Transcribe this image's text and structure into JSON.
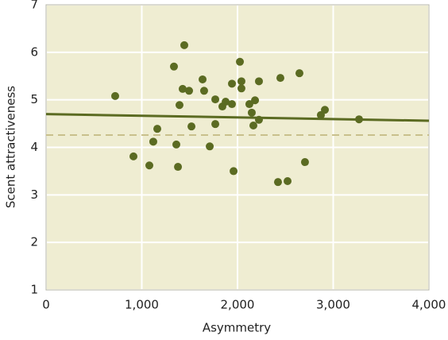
{
  "chart_data": {
    "type": "scatter",
    "x_label": "Asymmetry",
    "y_label": "Scent attractiveness",
    "xlim": [
      0,
      4000
    ],
    "ylim": [
      1,
      7
    ],
    "xticks": [
      0,
      {
        "value": 1000,
        "label": "1,000"
      },
      {
        "value": 2000,
        "label": "2,000"
      },
      {
        "value": 3000,
        "label": "3,000"
      },
      {
        "value": 4000,
        "label": "4,000"
      }
    ],
    "yticks": [
      1,
      2,
      3,
      4,
      5,
      6,
      7
    ],
    "grid": true,
    "background": "#efedd2",
    "color": "#5b6b22",
    "x": [
      722,
      913,
      1079,
      1120,
      1162,
      1336,
      1361,
      1378,
      1394,
      1427,
      1444,
      1494,
      1519,
      1635,
      1651,
      1710,
      1768,
      1768,
      1842,
      1876,
      1942,
      1942,
      1959,
      2025,
      2041,
      2041,
      2124,
      2149,
      2166,
      2183,
      2224,
      2224,
      2423,
      2448,
      2523,
      2647,
      2705,
      2871,
      2913,
      3270
    ],
    "y": [
      5.08,
      3.81,
      3.62,
      4.12,
      4.39,
      5.7,
      4.06,
      3.59,
      4.89,
      5.23,
      6.15,
      5.19,
      4.44,
      5.43,
      5.19,
      4.02,
      4.49,
      5.01,
      4.86,
      4.96,
      4.91,
      5.34,
      3.5,
      5.8,
      5.39,
      5.24,
      4.91,
      4.73,
      4.46,
      4.99,
      4.58,
      5.39,
      3.27,
      5.46,
      3.29,
      5.56,
      3.69,
      4.68,
      4.79,
      4.59
    ],
    "trend_line": {
      "x": [
        0,
        4000
      ],
      "y": [
        4.7,
        4.56
      ],
      "color": "#5b6b22"
    },
    "reference_line": {
      "y": 4.26,
      "color": "#c9c08c"
    }
  }
}
